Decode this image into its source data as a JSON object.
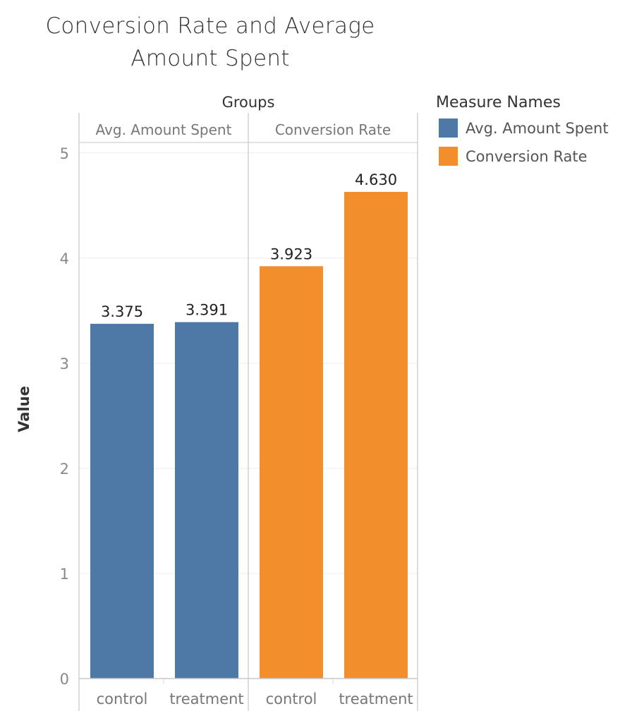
{
  "chart_data": {
    "type": "bar",
    "title": "Conversion Rate and Average Amount Spent",
    "xlabel": "",
    "ylabel": "Value",
    "column_header": "Groups",
    "categories": [
      "control",
      "treatment"
    ],
    "series": [
      {
        "name": "Avg. Amount Spent",
        "color": "#4e79a7",
        "values": [
          3.375,
          3.391
        ],
        "labels": [
          "3.375",
          "3.391"
        ]
      },
      {
        "name": "Conversion Rate",
        "color": "#f28e2b",
        "values": [
          3.923,
          4.63
        ],
        "labels": [
          "3.923",
          "4.630"
        ]
      }
    ],
    "ylim": [
      0,
      5.1
    ],
    "yticks": [
      0,
      1,
      2,
      3,
      4,
      5
    ],
    "grid": true,
    "legend": {
      "title": "Measure Names",
      "placement": "right"
    }
  }
}
